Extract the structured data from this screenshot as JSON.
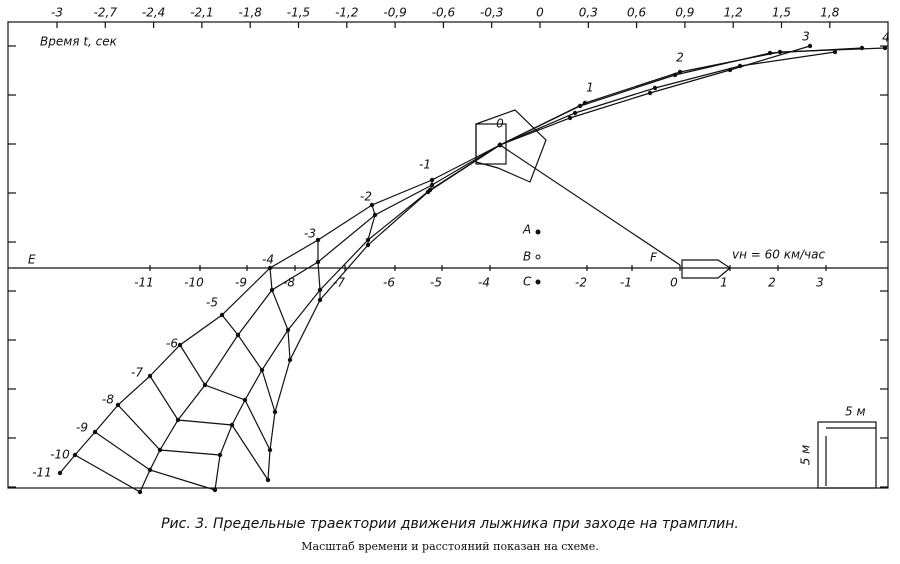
{
  "top_scale": {
    "title": "Время t, сек",
    "labels": [
      "-3",
      "-2,7",
      "-2,4",
      "-2,1",
      "-1,8",
      "-1,5",
      "-1,2",
      "-0,9",
      "-0,6",
      "-0,3",
      "0",
      "0,3",
      "0,6",
      "0,9",
      "1,2",
      "1,5",
      "1,8"
    ]
  },
  "axis": {
    "start_label": "E",
    "labels": [
      "-11",
      "-10",
      "-9",
      "-8",
      "-7",
      "-6",
      "-5",
      "-4",
      "-2",
      "-1",
      "0",
      "1",
      "2",
      "3"
    ]
  },
  "trajectory_labels": [
    "4",
    "3",
    "2",
    "1",
    "0",
    "-1",
    "-2",
    "-3",
    "-4",
    "-5",
    "-6",
    "-7",
    "-8",
    "-9",
    "-10",
    "-11"
  ],
  "points": {
    "a": "A",
    "b": "B",
    "c": "C",
    "f": "F"
  },
  "speed_label": "vн = 60 км/час",
  "scale": {
    "horizontal": "5 м",
    "vertical": "5 м"
  },
  "caption": {
    "title": "Рис. 3. Предельные траектории движения лыжника при заходе на трамплин.",
    "note": "Масштаб времени и расстояний показан на схеме."
  }
}
